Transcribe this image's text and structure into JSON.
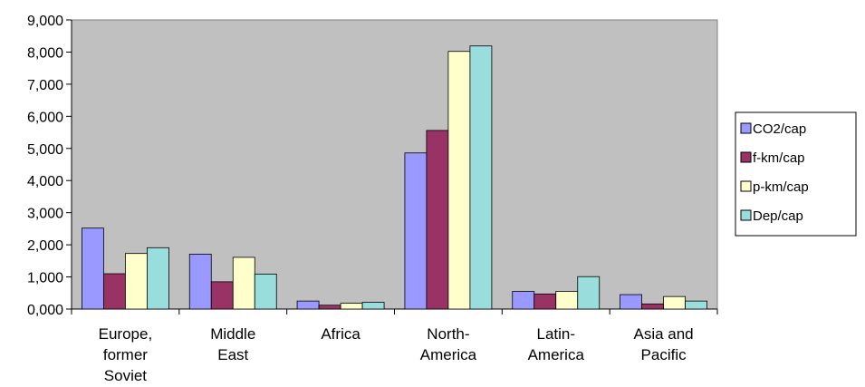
{
  "chart_data": {
    "type": "bar",
    "title": "",
    "xlabel": "",
    "ylabel": "",
    "ylim": [
      0,
      9000
    ],
    "yticks": [
      "0,000",
      "1,000",
      "2,000",
      "3,000",
      "4,000",
      "5,000",
      "6,000",
      "7,000",
      "8,000",
      "9,000"
    ],
    "grid": false,
    "legend_position": "right",
    "categories": [
      [
        "Europe,",
        "former",
        "Soviet"
      ],
      [
        "Middle",
        "East"
      ],
      [
        "Africa"
      ],
      [
        "North-",
        "America"
      ],
      [
        "Latin-",
        "America"
      ],
      [
        "Asia and",
        "Pacific"
      ]
    ],
    "series": [
      {
        "name": "CO2/cap",
        "color": "#9999FF",
        "values": [
          2520,
          1710,
          250,
          4860,
          550,
          450
        ]
      },
      {
        "name": "f-km/cap",
        "color": "#993366",
        "values": [
          1100,
          850,
          120,
          5560,
          470,
          160
        ]
      },
      {
        "name": "p-km/cap",
        "color": "#FFFFCC",
        "values": [
          1730,
          1610,
          180,
          8020,
          550,
          390
        ]
      },
      {
        "name": "Dep/cap",
        "color": "#99DDDD",
        "values": [
          1910,
          1090,
          210,
          8190,
          1010,
          250
        ]
      }
    ],
    "plot_background": "#C0C0C0"
  }
}
